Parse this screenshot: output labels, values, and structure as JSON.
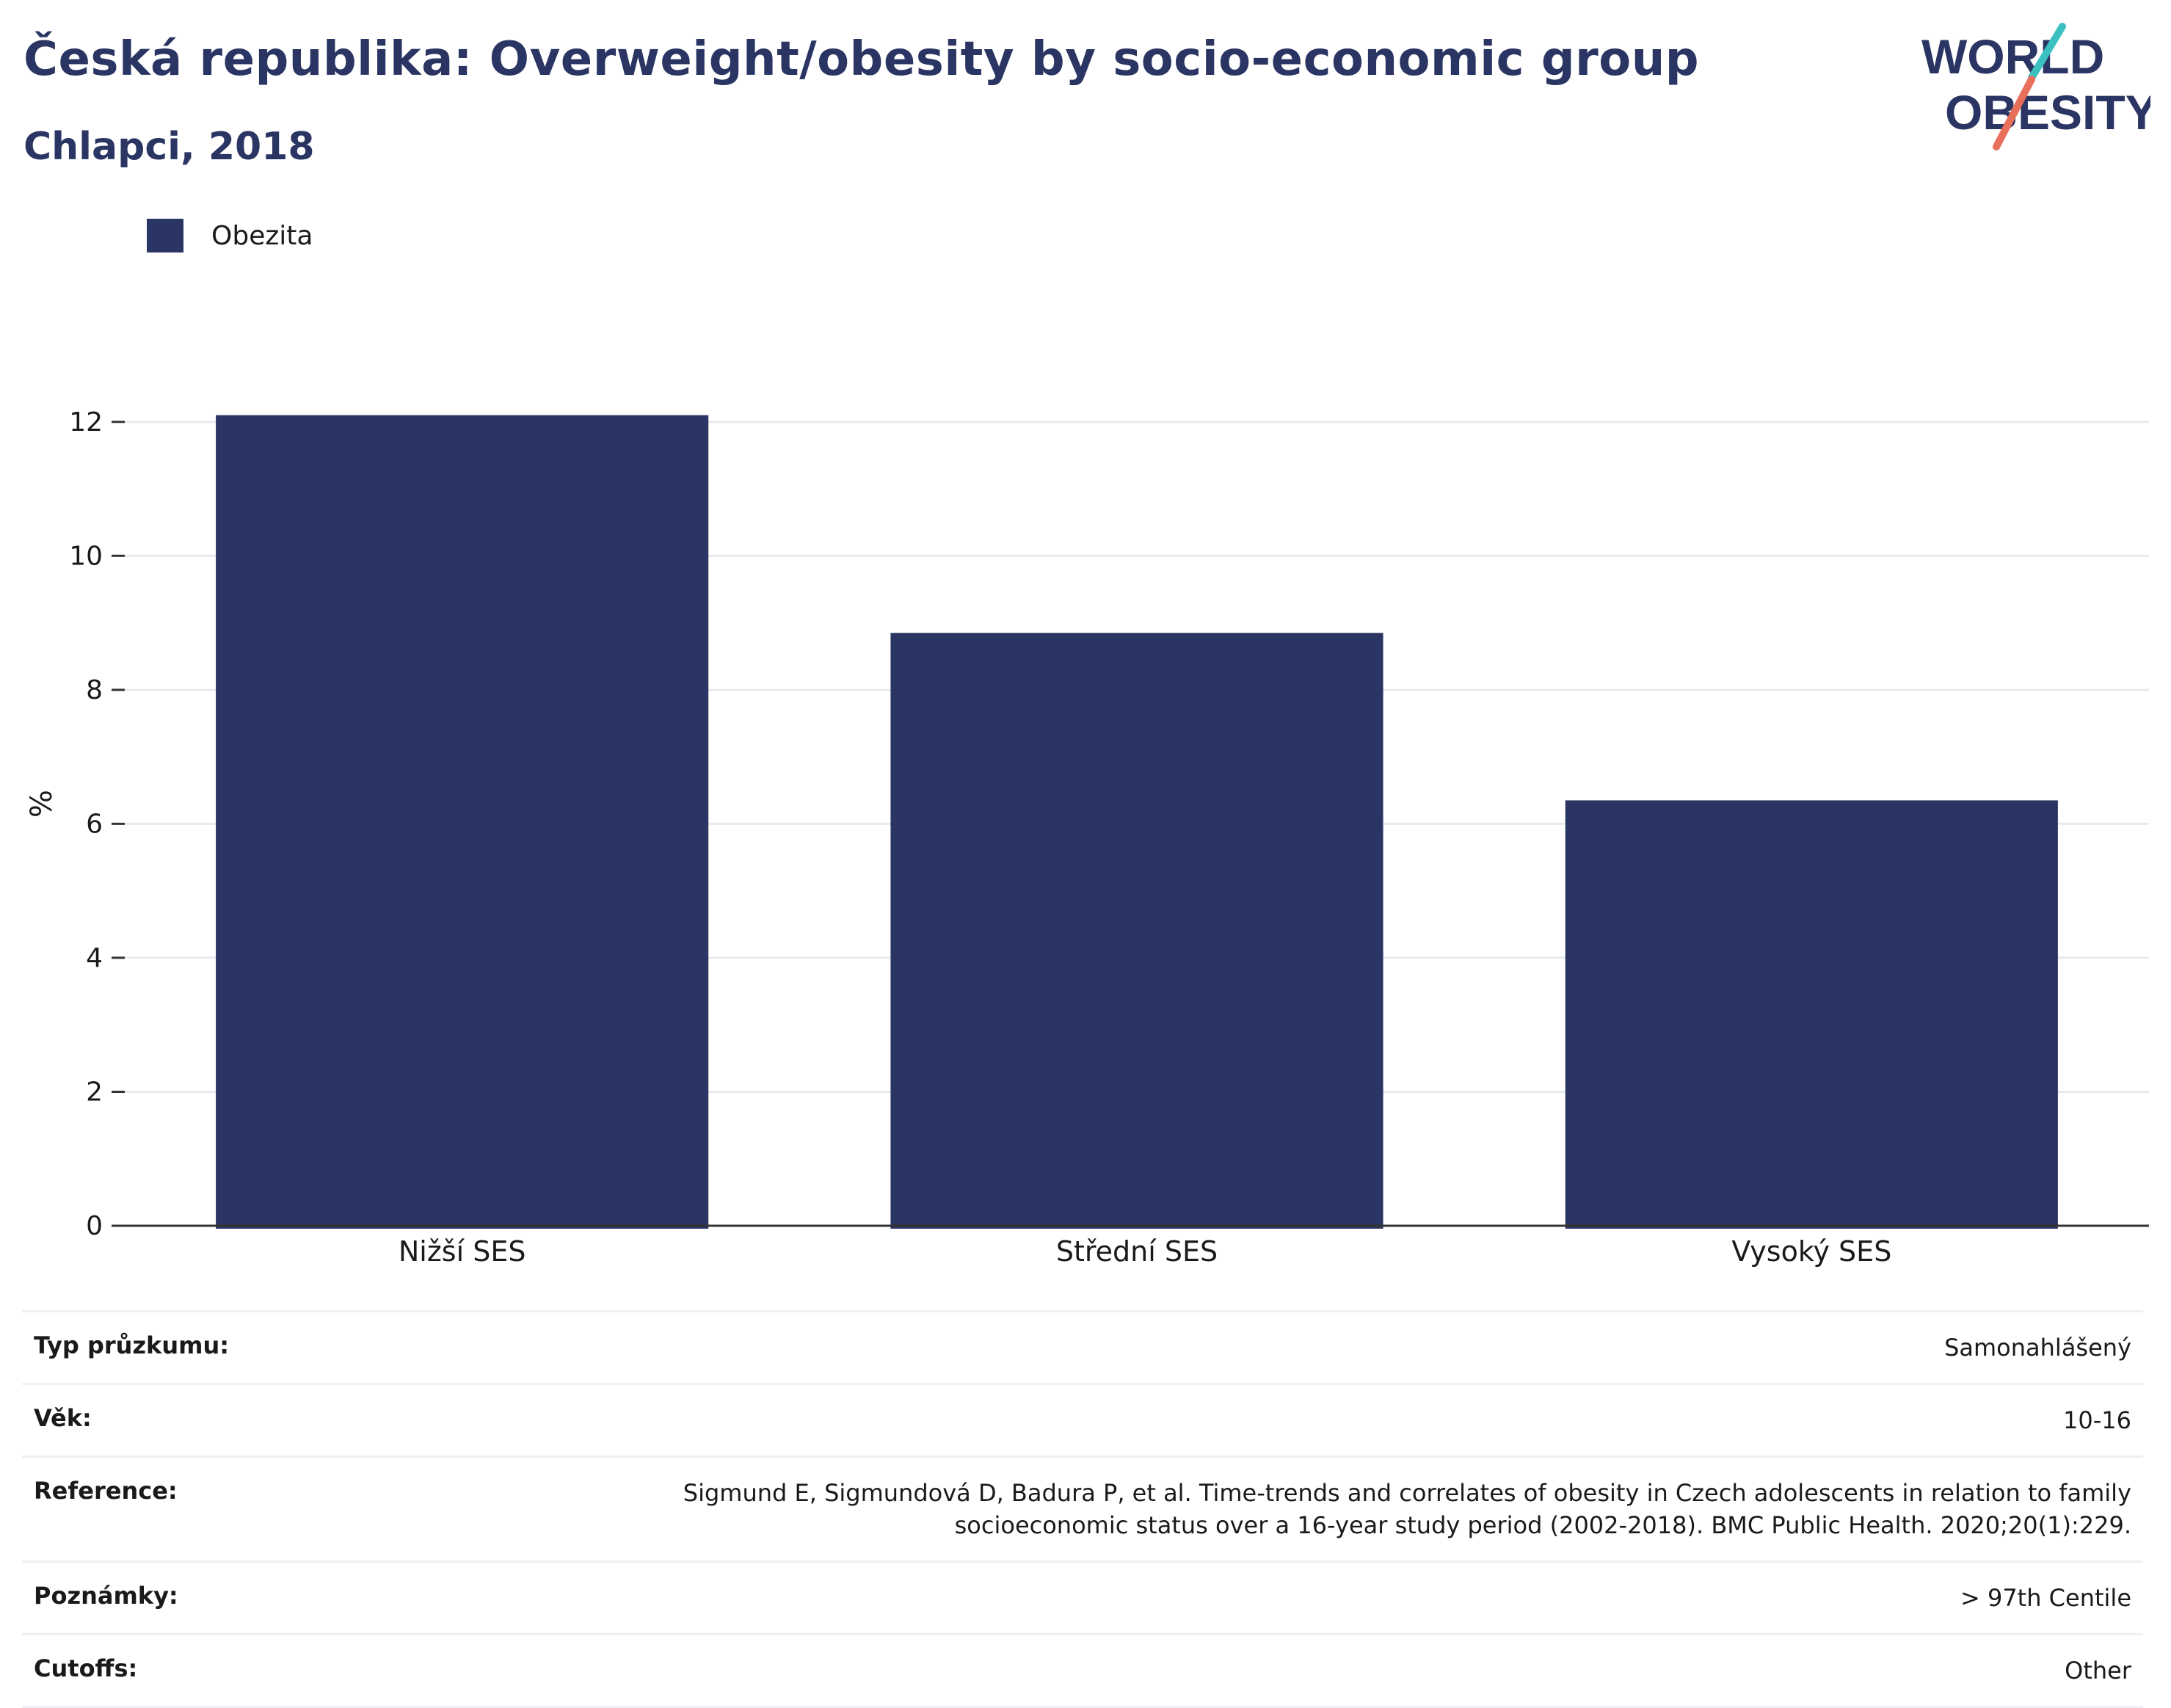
{
  "header": {
    "title": "Česká republika: Overweight/obesity by socio-economic group",
    "subtitle": "Chlapci, 2018"
  },
  "logo": {
    "line1": "WORLD",
    "line2": "OBESITY",
    "accent_teal": "#3bbfbf",
    "accent_coral": "#e8705a"
  },
  "colors": {
    "bar": "#2a3563",
    "title": "#2a3563"
  },
  "chart_data": {
    "type": "bar",
    "categories": [
      "Nižší SES",
      "Střední SES",
      "Vysoký SES"
    ],
    "series": [
      {
        "name": "Obezita",
        "values": [
          12.1,
          8.85,
          6.35
        ]
      }
    ],
    "ylabel": "%",
    "xlabel": "",
    "ylim": [
      0,
      12.6
    ],
    "yticks": [
      0,
      2,
      4,
      6,
      8,
      10,
      12
    ],
    "grid": true,
    "legend": "top-left"
  },
  "info": [
    {
      "label": "Typ průzkumu:",
      "value": "Samonahlášený"
    },
    {
      "label": "Věk:",
      "value": "10-16"
    },
    {
      "label": "Reference:",
      "value": "Sigmund E, Sigmundová D, Badura P, et al. Time-trends and correlates of obesity in Czech adolescents in relation to family socioeconomic status over a 16-year study period (2002-2018). BMC Public Health. 2020;20(1):229."
    },
    {
      "label": "Poznámky:",
      "value": "> 97th Centile"
    },
    {
      "label": "Cutoffs:",
      "value": "Other"
    }
  ]
}
